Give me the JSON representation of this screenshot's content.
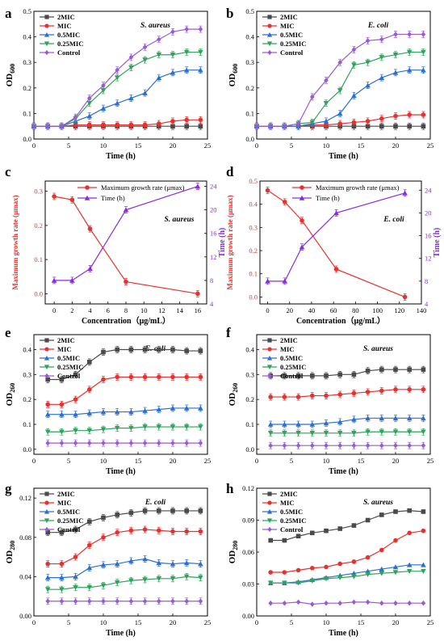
{
  "colors": {
    "2MIC": "#4a4a4a",
    "MIC": "#e8312f",
    "0.5MIC": "#2a6fd1",
    "0.25MIC": "#2ea35a",
    "Control": "#9a5ad8",
    "mu": "#e8312f",
    "time": "#8a2be2",
    "axis": "#000000"
  },
  "chart_data": [
    {
      "type": "line",
      "panel_label": "a",
      "annotation": "S. aureus",
      "xlabel": "Time (h)",
      "ylabel": "OD600",
      "xlim": [
        0,
        25
      ],
      "ylim": [
        0,
        0.5
      ],
      "xticks": [
        0,
        5,
        10,
        15,
        20,
        25
      ],
      "yticks": [
        0.0,
        0.1,
        0.2,
        0.3,
        0.4,
        0.5
      ],
      "x": [
        0,
        2,
        4,
        6,
        8,
        10,
        12,
        14,
        16,
        18,
        20,
        22,
        24
      ],
      "legend": "top-left",
      "series": [
        {
          "name": "2MIC",
          "values": [
            0.05,
            0.05,
            0.05,
            0.05,
            0.05,
            0.05,
            0.05,
            0.05,
            0.05,
            0.05,
            0.05,
            0.05,
            0.05
          ]
        },
        {
          "name": "MIC",
          "values": [
            0.05,
            0.05,
            0.05,
            0.055,
            0.055,
            0.055,
            0.055,
            0.055,
            0.055,
            0.06,
            0.07,
            0.075,
            0.075
          ]
        },
        {
          "name": "0.5MIC",
          "values": [
            0.05,
            0.05,
            0.05,
            0.07,
            0.09,
            0.12,
            0.14,
            0.16,
            0.18,
            0.24,
            0.26,
            0.27,
            0.27
          ]
        },
        {
          "name": "0.25MIC",
          "values": [
            0.05,
            0.05,
            0.05,
            0.08,
            0.14,
            0.19,
            0.24,
            0.28,
            0.31,
            0.33,
            0.33,
            0.34,
            0.34
          ]
        },
        {
          "name": "Control",
          "values": [
            0.05,
            0.05,
            0.05,
            0.085,
            0.16,
            0.21,
            0.27,
            0.32,
            0.36,
            0.39,
            0.42,
            0.43,
            0.43
          ]
        }
      ]
    },
    {
      "type": "line",
      "panel_label": "b",
      "annotation": "E. coli",
      "xlabel": "Time (h)",
      "ylabel": "OD600",
      "xlim": [
        0,
        25
      ],
      "ylim": [
        0,
        0.5
      ],
      "xticks": [
        0,
        5,
        10,
        15,
        20,
        25
      ],
      "yticks": [
        0.0,
        0.1,
        0.2,
        0.3,
        0.4,
        0.5
      ],
      "x": [
        0,
        2,
        4,
        6,
        8,
        10,
        12,
        14,
        16,
        18,
        20,
        22,
        24
      ],
      "legend": "top-left",
      "series": [
        {
          "name": "2MIC",
          "values": [
            0.05,
            0.05,
            0.05,
            0.05,
            0.05,
            0.05,
            0.05,
            0.05,
            0.05,
            0.05,
            0.05,
            0.05,
            0.05
          ]
        },
        {
          "name": "MIC",
          "values": [
            0.05,
            0.05,
            0.05,
            0.05,
            0.055,
            0.055,
            0.06,
            0.065,
            0.07,
            0.08,
            0.09,
            0.095,
            0.095
          ]
        },
        {
          "name": "0.5MIC",
          "values": [
            0.05,
            0.05,
            0.05,
            0.05,
            0.06,
            0.07,
            0.1,
            0.17,
            0.21,
            0.24,
            0.26,
            0.27,
            0.27
          ]
        },
        {
          "name": "0.25MIC",
          "values": [
            0.05,
            0.05,
            0.05,
            0.06,
            0.065,
            0.14,
            0.19,
            0.29,
            0.3,
            0.32,
            0.33,
            0.34,
            0.34
          ]
        },
        {
          "name": "Control",
          "values": [
            0.05,
            0.05,
            0.05,
            0.06,
            0.165,
            0.23,
            0.3,
            0.35,
            0.385,
            0.39,
            0.41,
            0.41,
            0.41
          ]
        }
      ]
    },
    {
      "type": "line",
      "panel_label": "c",
      "annotation": "S. aureus",
      "xlabel": "Concentration（μg/mL）",
      "ylabel": "Maximum growth rate (μmax)",
      "ylabel_right": "Time (h)",
      "xlim": [
        -1,
        17
      ],
      "ylim": [
        -0.03,
        0.33
      ],
      "ylim_right": [
        4,
        24.9
      ],
      "xticks": [
        0,
        2,
        4,
        6,
        8,
        10,
        12,
        14,
        16
      ],
      "yticks": [
        0.0,
        0.1,
        0.2,
        0.3
      ],
      "yticks_right": [
        4,
        8,
        12,
        16,
        20,
        24
      ],
      "x": [
        0,
        2,
        4,
        8,
        16
      ],
      "legend": "top-center",
      "series": [
        {
          "name": "Maximum growth rate (μmax)",
          "axis": "left",
          "values": [
            0.285,
            0.275,
            0.19,
            0.035,
            0.0
          ]
        },
        {
          "name": "Time (h)",
          "axis": "right",
          "values": [
            8,
            8,
            10,
            20,
            24
          ]
        }
      ]
    },
    {
      "type": "line",
      "panel_label": "d",
      "annotation": "E. coli",
      "xlabel": "Concentration（μg/mL）",
      "ylabel": "Maximum growth rate (μmax)",
      "ylabel_right": "Time (h)",
      "xlim": [
        -7,
        140
      ],
      "ylim": [
        -0.03,
        0.5
      ],
      "ylim_right": [
        4,
        25.6
      ],
      "xticks": [
        0,
        20,
        40,
        60,
        80,
        100,
        120,
        140
      ],
      "yticks": [
        0.0,
        0.1,
        0.2,
        0.3,
        0.4,
        0.5
      ],
      "yticks_right": [
        4,
        8,
        12,
        16,
        20,
        24
      ],
      "x": [
        0,
        15.6,
        31.25,
        62.5,
        125
      ],
      "legend": "top-center",
      "series": [
        {
          "name": "Maximum growth rate (μmax)",
          "axis": "left",
          "values": [
            0.46,
            0.41,
            0.33,
            0.12,
            0.0
          ]
        },
        {
          "name": "Time (h)",
          "axis": "right",
          "values": [
            8,
            8,
            14,
            20,
            23.5
          ]
        }
      ]
    },
    {
      "type": "line",
      "panel_label": "e",
      "annotation": "E. coli",
      "xlabel": "Time (h)",
      "ylabel": "OD260",
      "xlim": [
        0,
        25
      ],
      "ylim": [
        -0.02,
        0.46
      ],
      "xticks": [
        0,
        5,
        10,
        15,
        20,
        25
      ],
      "yticks": [
        0.0,
        0.1,
        0.2,
        0.3,
        0.4
      ],
      "x": [
        2,
        4,
        6,
        8,
        10,
        12,
        14,
        16,
        18,
        20,
        22,
        24
      ],
      "legend": "top-left",
      "series": [
        {
          "name": "2MIC",
          "values": [
            0.28,
            0.28,
            0.3,
            0.35,
            0.39,
            0.4,
            0.4,
            0.4,
            0.4,
            0.4,
            0.395,
            0.395
          ]
        },
        {
          "name": "MIC",
          "values": [
            0.18,
            0.18,
            0.2,
            0.24,
            0.28,
            0.29,
            0.29,
            0.29,
            0.29,
            0.29,
            0.29,
            0.29
          ]
        },
        {
          "name": "0.5MIC",
          "values": [
            0.14,
            0.14,
            0.14,
            0.145,
            0.15,
            0.15,
            0.15,
            0.155,
            0.16,
            0.165,
            0.165,
            0.165
          ]
        },
        {
          "name": "0.25MIC",
          "values": [
            0.07,
            0.07,
            0.075,
            0.075,
            0.08,
            0.085,
            0.085,
            0.09,
            0.09,
            0.09,
            0.09,
            0.09
          ]
        },
        {
          "name": "Control",
          "values": [
            0.025,
            0.025,
            0.025,
            0.025,
            0.025,
            0.025,
            0.025,
            0.025,
            0.025,
            0.025,
            0.025,
            0.025
          ]
        }
      ]
    },
    {
      "type": "line",
      "panel_label": "f",
      "annotation": "S. aureus",
      "xlabel": "Time (h)",
      "ylabel": "OD260",
      "xlim": [
        0,
        25
      ],
      "ylim": [
        -0.02,
        0.46
      ],
      "xticks": [
        0,
        5,
        10,
        15,
        20,
        25
      ],
      "yticks": [
        0.0,
        0.1,
        0.2,
        0.3,
        0.4
      ],
      "x": [
        2,
        4,
        6,
        8,
        10,
        12,
        14,
        16,
        18,
        20,
        22,
        24
      ],
      "legend": "top-left",
      "series": [
        {
          "name": "2MIC",
          "values": [
            0.295,
            0.295,
            0.295,
            0.295,
            0.295,
            0.3,
            0.3,
            0.315,
            0.32,
            0.32,
            0.32,
            0.32
          ]
        },
        {
          "name": "MIC",
          "values": [
            0.21,
            0.21,
            0.21,
            0.215,
            0.215,
            0.22,
            0.225,
            0.23,
            0.235,
            0.24,
            0.24,
            0.24
          ]
        },
        {
          "name": "0.5MIC",
          "values": [
            0.1,
            0.1,
            0.1,
            0.1,
            0.105,
            0.11,
            0.12,
            0.125,
            0.125,
            0.125,
            0.125,
            0.125
          ]
        },
        {
          "name": "0.25MIC",
          "values": [
            0.065,
            0.065,
            0.065,
            0.065,
            0.065,
            0.065,
            0.065,
            0.07,
            0.07,
            0.07,
            0.07,
            0.07
          ]
        },
        {
          "name": "Control",
          "values": [
            0.015,
            0.015,
            0.015,
            0.015,
            0.015,
            0.015,
            0.015,
            0.015,
            0.015,
            0.015,
            0.015,
            0.015
          ]
        }
      ]
    },
    {
      "type": "line",
      "panel_label": "g",
      "annotation": "E. coli",
      "xlabel": "Time (h)",
      "ylabel": "OD280",
      "xlim": [
        0,
        25
      ],
      "ylim": [
        0,
        0.13
      ],
      "xticks": [
        0,
        5,
        10,
        15,
        20,
        25
      ],
      "yticks": [
        0.0,
        0.04,
        0.08,
        0.12
      ],
      "x": [
        2,
        4,
        6,
        8,
        10,
        12,
        14,
        16,
        18,
        20,
        22,
        24
      ],
      "legend": "top-left",
      "series": [
        {
          "name": "2MIC",
          "values": [
            0.085,
            0.085,
            0.088,
            0.096,
            0.1,
            0.103,
            0.105,
            0.107,
            0.107,
            0.107,
            0.107,
            0.107
          ]
        },
        {
          "name": "MIC",
          "values": [
            0.053,
            0.053,
            0.06,
            0.072,
            0.08,
            0.085,
            0.087,
            0.088,
            0.087,
            0.086,
            0.086,
            0.086
          ]
        },
        {
          "name": "0.5MIC",
          "values": [
            0.039,
            0.039,
            0.04,
            0.049,
            0.052,
            0.053,
            0.056,
            0.058,
            0.054,
            0.053,
            0.054,
            0.053
          ]
        },
        {
          "name": "0.25MIC",
          "values": [
            0.027,
            0.027,
            0.029,
            0.029,
            0.031,
            0.034,
            0.036,
            0.037,
            0.038,
            0.038,
            0.04,
            0.039
          ]
        },
        {
          "name": "Control",
          "values": [
            0.015,
            0.015,
            0.015,
            0.015,
            0.015,
            0.015,
            0.015,
            0.015,
            0.015,
            0.015,
            0.015,
            0.015
          ]
        }
      ]
    },
    {
      "type": "line",
      "panel_label": "h",
      "annotation": "S. aureus",
      "xlabel": "Time (h)",
      "ylabel": "OD280",
      "xlim": [
        0,
        25
      ],
      "ylim": [
        0,
        0.12
      ],
      "xticks": [
        0,
        5,
        10,
        15,
        20,
        25
      ],
      "yticks": [
        0.0,
        0.03,
        0.06,
        0.09,
        0.12
      ],
      "x": [
        2,
        4,
        6,
        8,
        10,
        12,
        14,
        16,
        18,
        20,
        22,
        24
      ],
      "legend": "top-left",
      "series": [
        {
          "name": "2MIC",
          "values": [
            0.071,
            0.071,
            0.075,
            0.078,
            0.08,
            0.082,
            0.085,
            0.09,
            0.095,
            0.098,
            0.099,
            0.098
          ]
        },
        {
          "name": "MIC",
          "values": [
            0.041,
            0.041,
            0.043,
            0.045,
            0.046,
            0.049,
            0.051,
            0.055,
            0.062,
            0.071,
            0.078,
            0.08
          ]
        },
        {
          "name": "0.5MIC",
          "values": [
            0.031,
            0.031,
            0.032,
            0.034,
            0.036,
            0.038,
            0.04,
            0.042,
            0.044,
            0.046,
            0.048,
            0.048
          ]
        },
        {
          "name": "0.25MIC",
          "values": [
            0.031,
            0.031,
            0.031,
            0.033,
            0.035,
            0.036,
            0.037,
            0.039,
            0.04,
            0.041,
            0.042,
            0.042
          ]
        },
        {
          "name": "Control",
          "values": [
            0.012,
            0.012,
            0.013,
            0.011,
            0.012,
            0.012,
            0.013,
            0.013,
            0.012,
            0.012,
            0.012,
            0.012
          ]
        }
      ]
    }
  ]
}
